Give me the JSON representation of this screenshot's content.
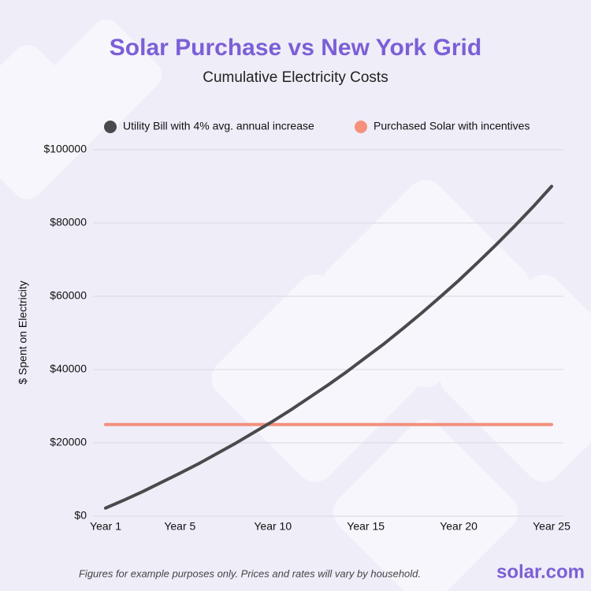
{
  "chart_data": {
    "type": "line",
    "title": "Solar Purchase vs New York Grid",
    "subtitle": "Cumulative Electricity Costs",
    "y_label": "$ Spent on Electricity",
    "footnote": "Figures for example purposes only. Prices and rates will vary by household.",
    "brand": "solar.com",
    "categories": [
      "Year 1",
      null,
      null,
      null,
      "Year 5",
      null,
      null,
      null,
      null,
      "Year 10",
      null,
      null,
      null,
      null,
      "Year 15",
      null,
      null,
      null,
      null,
      "Year 20",
      null,
      null,
      null,
      null,
      "Year 25"
    ],
    "series": [
      {
        "name": "Utility Bill with 4% avg. annual increase",
        "color": "#4a4a4c",
        "values": [
          2200,
          4400,
          6700,
          9200,
          11700,
          14300,
          17100,
          19900,
          22900,
          25900,
          29100,
          32500,
          35900,
          39500,
          43300,
          47100,
          51200,
          55400,
          59800,
          64300,
          69100,
          74000,
          79100,
          84400,
          90000
        ]
      },
      {
        "name": "Purchased Solar with incentives",
        "color": "#f4907c",
        "values": [
          25000,
          25000,
          25000,
          25000,
          25000,
          25000,
          25000,
          25000,
          25000,
          25000,
          25000,
          25000,
          25000,
          25000,
          25000,
          25000,
          25000,
          25000,
          25000,
          25000,
          25000,
          25000,
          25000,
          25000,
          25000
        ]
      }
    ],
    "ylim": [
      0,
      100000
    ],
    "yticks": [
      {
        "value": 0,
        "label": "$0"
      },
      {
        "value": 20000,
        "label": "$20000"
      },
      {
        "value": 40000,
        "label": "$40000"
      },
      {
        "value": 60000,
        "label": "$60000"
      },
      {
        "value": 80000,
        "label": "$80000"
      },
      {
        "value": 100000,
        "label": "$100000"
      }
    ],
    "grid": true,
    "legend": "top"
  }
}
